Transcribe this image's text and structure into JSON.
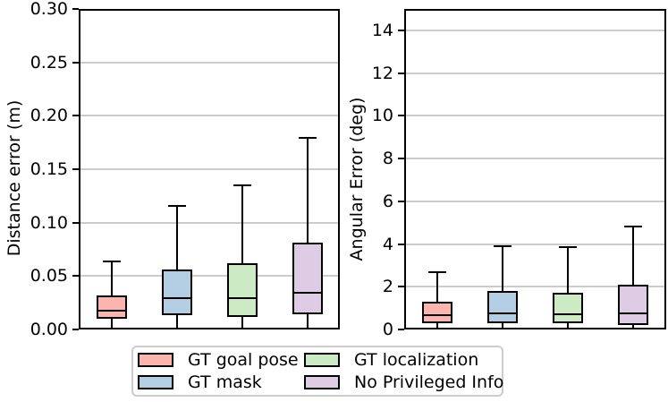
{
  "figure": {
    "background": "#ffffff"
  },
  "chart_data": [
    {
      "type": "box",
      "title": "",
      "xlabel": "",
      "ylabel": "Distance error (m)",
      "ylim": [
        0,
        0.3
      ],
      "yticks": [
        0,
        0.05,
        0.1,
        0.15,
        0.2,
        0.25,
        0.3
      ],
      "ytick_labels": [
        "0.00",
        "0.05",
        "0.10",
        "0.15",
        "0.20",
        "0.25",
        "0.30"
      ],
      "grid": true,
      "legend_position": "below-figure",
      "series": [
        {
          "name": "GT goal pose",
          "color": "#fbb4ae",
          "whisker_low": 0.0,
          "q1": 0.01,
          "median": 0.018,
          "q3": 0.032,
          "whisker_high": 0.064
        },
        {
          "name": "GT mask",
          "color": "#b3cde3",
          "whisker_low": 0.0,
          "q1": 0.013,
          "median": 0.029,
          "q3": 0.056,
          "whisker_high": 0.116
        },
        {
          "name": "GT localization",
          "color": "#ccebc5",
          "whisker_low": 0.0,
          "q1": 0.012,
          "median": 0.029,
          "q3": 0.062,
          "whisker_high": 0.135
        },
        {
          "name": "No Privileged Info",
          "color": "#decbe4",
          "whisker_low": 0.0,
          "q1": 0.014,
          "median": 0.034,
          "q3": 0.081,
          "whisker_high": 0.179
        }
      ]
    },
    {
      "type": "box",
      "title": "",
      "xlabel": "",
      "ylabel": "Angular Error (deg)",
      "ylim": [
        0,
        15
      ],
      "yticks": [
        0,
        2,
        4,
        6,
        8,
        10,
        12,
        14
      ],
      "ytick_labels": [
        "0",
        "2",
        "4",
        "6",
        "8",
        "10",
        "12",
        "14"
      ],
      "grid": true,
      "legend_position": "below-figure",
      "series": [
        {
          "name": "GT goal pose",
          "color": "#fbb4ae",
          "whisker_low": 0.0,
          "q1": 0.28,
          "median": 0.65,
          "q3": 1.3,
          "whisker_high": 2.68
        },
        {
          "name": "GT mask",
          "color": "#b3cde3",
          "whisker_low": 0.0,
          "q1": 0.29,
          "median": 0.75,
          "q3": 1.8,
          "whisker_high": 3.9
        },
        {
          "name": "GT localization",
          "color": "#ccebc5",
          "whisker_low": 0.0,
          "q1": 0.29,
          "median": 0.72,
          "q3": 1.73,
          "whisker_high": 3.85
        },
        {
          "name": "No Privileged Info",
          "color": "#decbe4",
          "whisker_low": 0.0,
          "q1": 0.22,
          "median": 0.74,
          "q3": 2.1,
          "whisker_high": 4.8
        }
      ]
    }
  ],
  "legend": {
    "entries": [
      {
        "label": "GT goal pose",
        "color": "#fbb4ae"
      },
      {
        "label": "GT localization",
        "color": "#ccebc5"
      },
      {
        "label": "GT mask",
        "color": "#b3cde3"
      },
      {
        "label": "No Privileged Info",
        "color": "#decbe4"
      }
    ]
  },
  "colors": {
    "grid": "#cccccc",
    "box_edge": "#000000",
    "spine": "#000000",
    "legend_border": "#cccccc",
    "background": "#ffffff"
  }
}
